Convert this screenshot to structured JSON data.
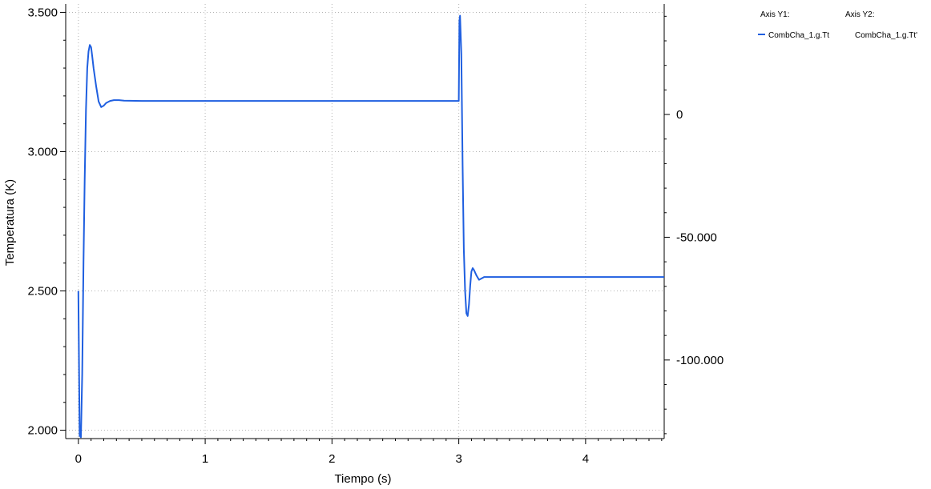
{
  "chart_data": {
    "type": "line",
    "xlabel": "Tiempo (s)",
    "ylabel": "Temperatura (K)",
    "xlim": [
      -0.1,
      4.62
    ],
    "ylim": [
      1970,
      3530
    ],
    "y2lim": [
      -132,
      45
    ],
    "grid": true,
    "x_ticks": [
      0,
      1,
      2,
      3,
      4
    ],
    "x_tick_labels": [
      "0",
      "1",
      "2",
      "3",
      "4"
    ],
    "y_ticks": [
      2000,
      2500,
      3000,
      3500
    ],
    "y_tick_labels": [
      "2.000",
      "2.500",
      "3.000",
      "3.500"
    ],
    "y2_ticks": [
      0,
      -50,
      -100
    ],
    "y2_tick_labels": [
      "0",
      "-50.000",
      "-100.000"
    ],
    "legend": {
      "position": "top-right",
      "axis_y1_label": "Axis Y1:",
      "axis_y2_label": "Axis Y2:",
      "y1_entries": [
        "CombCha_1.g.Tt"
      ],
      "y2_entries": [
        "CombCha_1.g.Tt'"
      ]
    },
    "series": [
      {
        "name": "CombCha_1.g.Tt",
        "axis": "y1",
        "color": "#1f5fe0",
        "x": [
          0,
          0.01,
          0.02,
          0.03,
          0.04,
          0.05,
          0.06,
          0.07,
          0.08,
          0.09,
          0.1,
          0.11,
          0.12,
          0.14,
          0.16,
          0.18,
          0.2,
          0.22,
          0.25,
          0.28,
          0.32,
          0.36,
          0.5,
          1.0,
          2.0,
          2.9,
          2.99,
          3.0,
          3.005,
          3.01,
          3.02,
          3.03,
          3.04,
          3.05,
          3.06,
          3.07,
          3.08,
          3.09,
          3.1,
          3.11,
          3.12,
          3.14,
          3.16,
          3.18,
          3.2,
          3.25,
          3.5,
          4.0,
          4.62
        ],
        "y": [
          2500,
          1980,
          1975,
          2200,
          2600,
          2900,
          3150,
          3300,
          3360,
          3383,
          3375,
          3340,
          3300,
          3235,
          3180,
          3160,
          3165,
          3175,
          3182,
          3185,
          3185,
          3183,
          3182,
          3182,
          3182,
          3182,
          3182,
          3182,
          3470,
          3488,
          3350,
          2950,
          2650,
          2500,
          2420,
          2410,
          2450,
          2520,
          2570,
          2582,
          2575,
          2555,
          2540,
          2545,
          2550,
          2550,
          2550,
          2550,
          2550
        ]
      }
    ]
  }
}
